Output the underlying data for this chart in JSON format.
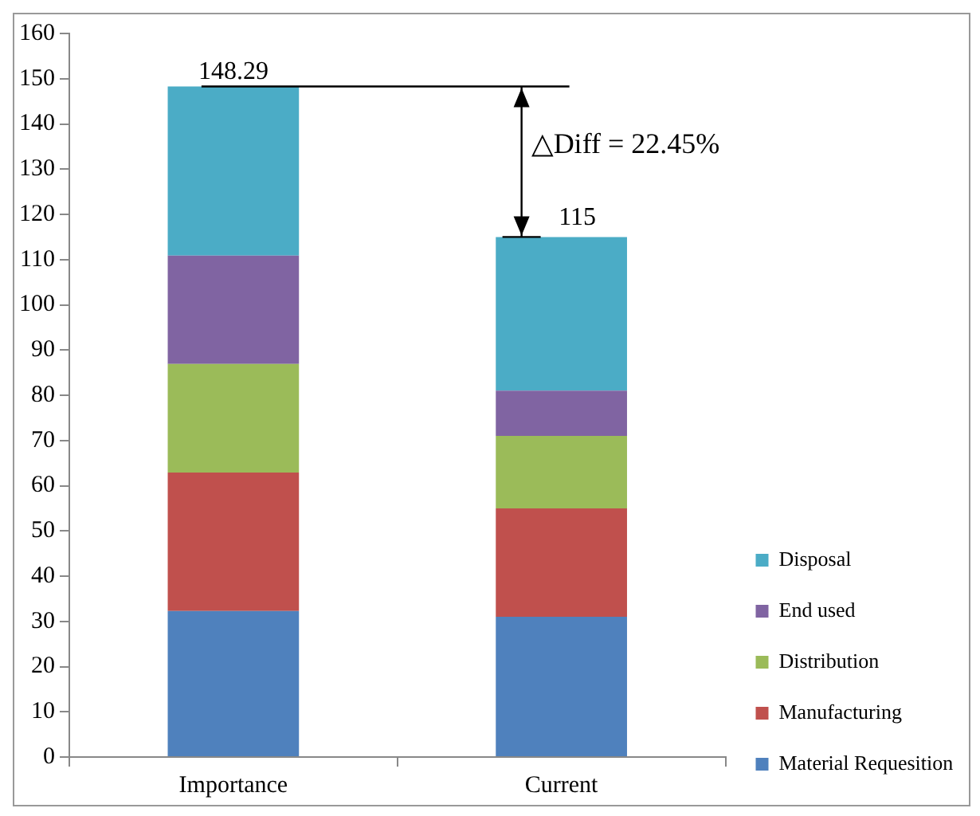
{
  "chart_data": {
    "type": "bar",
    "stacked": true,
    "categories": [
      "Importance",
      "Current"
    ],
    "series": [
      {
        "name": "Material Requesition",
        "color": "#4f81bd",
        "values": [
          32.3,
          31
        ]
      },
      {
        "name": "Manufacturing",
        "color": "#c0504d",
        "values": [
          30.6,
          24
        ]
      },
      {
        "name": "Distribution",
        "color": "#9bbb59",
        "values": [
          24,
          16
        ]
      },
      {
        "name": "End used",
        "color": "#8064a2",
        "values": [
          24,
          10
        ]
      },
      {
        "name": "Disposal",
        "color": "#4bacc6",
        "values": [
          37.39,
          34
        ]
      }
    ],
    "ylim": [
      0,
      160
    ],
    "yticks": [
      0,
      10,
      20,
      30,
      40,
      50,
      60,
      70,
      80,
      90,
      100,
      110,
      120,
      130,
      140,
      150,
      160
    ],
    "grid": false,
    "legend": "bottom right",
    "annotations": [
      {
        "text": "148.29",
        "x": "Importance",
        "y": 148.29
      },
      {
        "text": "115",
        "x": "Current",
        "y": 115
      },
      "△Diff = 22.45%"
    ]
  }
}
